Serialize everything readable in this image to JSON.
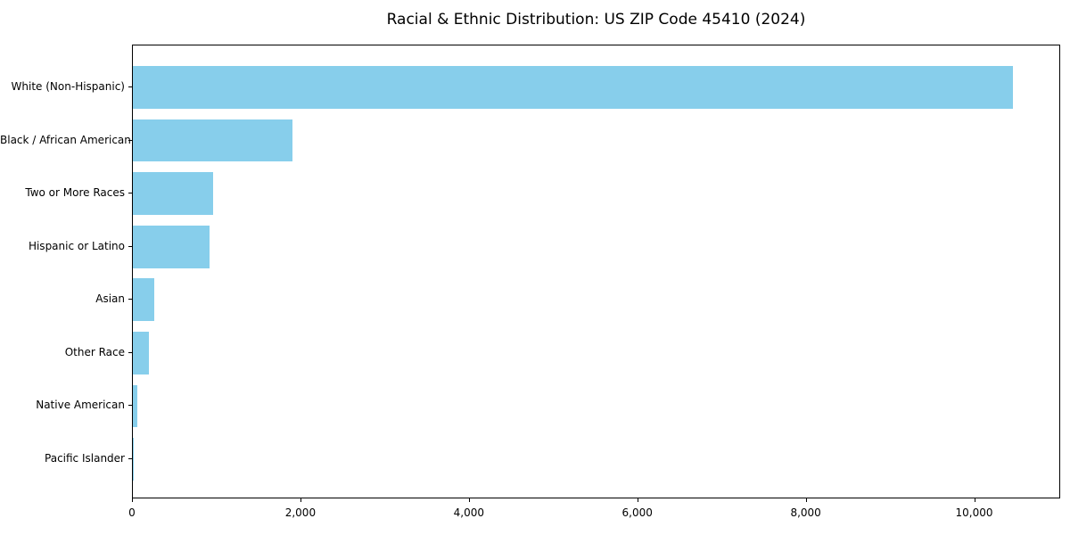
{
  "page": {
    "background_color": "#ffffff",
    "text_color": "#000000"
  },
  "chart_data": {
    "type": "bar",
    "orientation": "horizontal",
    "title": "Racial & Ethnic Distribution: US ZIP Code 45410 (2024)",
    "xlabel": "",
    "ylabel": "",
    "categories": [
      "White (Non-Hispanic)",
      "Black / African American",
      "Two or More Races",
      "Hispanic or Latino",
      "Asian",
      "Other Race",
      "Native American",
      "Pacific Islander"
    ],
    "values": [
      10450,
      1900,
      950,
      910,
      255,
      190,
      50,
      5
    ],
    "bar_color": "#87CEEB",
    "xlim": [
      0,
      11000
    ],
    "x_ticks": [
      {
        "value": 0,
        "label": "0"
      },
      {
        "value": 2000,
        "label": "2,000"
      },
      {
        "value": 4000,
        "label": "4,000"
      },
      {
        "value": 6000,
        "label": "6,000"
      },
      {
        "value": 8000,
        "label": "8,000"
      },
      {
        "value": 10000,
        "label": "10,000"
      }
    ],
    "grid": false,
    "legend": null,
    "spines": "full-box"
  }
}
